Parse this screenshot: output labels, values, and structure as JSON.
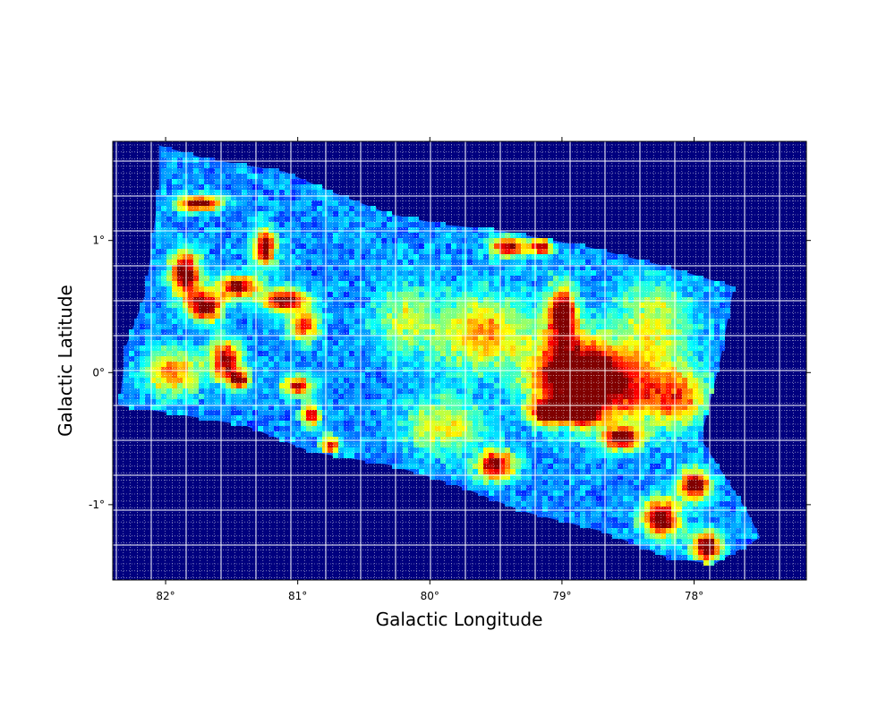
{
  "chart_data": {
    "type": "heatmap",
    "xlabel": "Galactic Longitude",
    "ylabel": "Galactic Latitude",
    "x_reversed": true,
    "xlim": [
      82.4,
      77.15
    ],
    "ylim": [
      -1.57,
      1.75
    ],
    "x_ticks": [
      82,
      81,
      80,
      79,
      78
    ],
    "x_tick_labels": [
      "82°",
      "81°",
      "80°",
      "79°",
      "78°"
    ],
    "y_ticks": [
      1,
      0,
      -1
    ],
    "y_tick_labels": [
      "1°",
      "0°",
      "-1°"
    ],
    "grid": true,
    "colormap": "jet",
    "background_color": "#00007f",
    "coverage_outline": [
      [
        82.05,
        1.72
      ],
      [
        81.7,
        1.62
      ],
      [
        81.1,
        1.52
      ],
      [
        80.7,
        1.35
      ],
      [
        80.3,
        1.2
      ],
      [
        79.9,
        1.12
      ],
      [
        79.5,
        1.08
      ],
      [
        78.8,
        0.95
      ],
      [
        78.2,
        0.8
      ],
      [
        77.7,
        0.65
      ],
      [
        77.8,
        0.1
      ],
      [
        77.95,
        -0.5
      ],
      [
        77.6,
        -1.05
      ],
      [
        77.5,
        -1.25
      ],
      [
        77.85,
        -1.45
      ],
      [
        78.2,
        -1.4
      ],
      [
        78.7,
        -1.2
      ],
      [
        79.3,
        -1.05
      ],
      [
        79.8,
        -0.85
      ],
      [
        80.3,
        -0.7
      ],
      [
        80.9,
        -0.6
      ],
      [
        81.4,
        -0.4
      ],
      [
        82.0,
        -0.3
      ],
      [
        82.35,
        -0.25
      ],
      [
        82.3,
        0.2
      ],
      [
        82.15,
        0.6
      ],
      [
        82.1,
        1.0
      ],
      [
        82.05,
        1.4
      ]
    ],
    "emission_clumps": [
      {
        "l": 81.75,
        "b": 1.28,
        "sl": 0.12,
        "sb": 0.04,
        "peak": 1.0
      },
      {
        "l": 81.85,
        "b": 0.75,
        "sl": 0.08,
        "sb": 0.12,
        "peak": 1.0
      },
      {
        "l": 81.7,
        "b": 0.5,
        "sl": 0.09,
        "sb": 0.08,
        "peak": 1.0
      },
      {
        "l": 81.45,
        "b": 0.65,
        "sl": 0.1,
        "sb": 0.06,
        "peak": 0.95
      },
      {
        "l": 81.25,
        "b": 0.95,
        "sl": 0.06,
        "sb": 0.1,
        "peak": 0.95
      },
      {
        "l": 81.1,
        "b": 0.55,
        "sl": 0.12,
        "sb": 0.06,
        "peak": 0.95
      },
      {
        "l": 81.55,
        "b": 0.1,
        "sl": 0.08,
        "sb": 0.1,
        "peak": 0.9
      },
      {
        "l": 81.45,
        "b": -0.05,
        "sl": 0.06,
        "sb": 0.05,
        "peak": 0.9
      },
      {
        "l": 80.95,
        "b": 0.35,
        "sl": 0.08,
        "sb": 0.08,
        "peak": 0.7
      },
      {
        "l": 81.0,
        "b": -0.1,
        "sl": 0.08,
        "sb": 0.05,
        "peak": 0.85
      },
      {
        "l": 80.9,
        "b": -0.32,
        "sl": 0.05,
        "sb": 0.06,
        "peak": 0.85
      },
      {
        "l": 81.95,
        "b": 0.0,
        "sl": 0.15,
        "sb": 0.12,
        "peak": 0.6
      },
      {
        "l": 80.75,
        "b": -0.55,
        "sl": 0.05,
        "sb": 0.05,
        "peak": 0.75
      },
      {
        "l": 79.4,
        "b": 0.95,
        "sl": 0.1,
        "sb": 0.05,
        "peak": 0.9
      },
      {
        "l": 79.15,
        "b": 0.95,
        "sl": 0.06,
        "sb": 0.04,
        "peak": 0.85
      },
      {
        "l": 79.0,
        "b": 0.45,
        "sl": 0.08,
        "sb": 0.15,
        "peak": 0.9
      },
      {
        "l": 78.95,
        "b": 0.0,
        "sl": 0.2,
        "sb": 0.2,
        "peak": 0.85
      },
      {
        "l": 78.6,
        "b": -0.1,
        "sl": 0.3,
        "sb": 0.2,
        "peak": 0.8
      },
      {
        "l": 79.1,
        "b": -0.3,
        "sl": 0.1,
        "sb": 0.06,
        "peak": 1.0
      },
      {
        "l": 78.85,
        "b": -0.3,
        "sl": 0.08,
        "sb": 0.06,
        "peak": 0.95
      },
      {
        "l": 79.5,
        "b": -0.7,
        "sl": 0.1,
        "sb": 0.08,
        "peak": 0.9
      },
      {
        "l": 78.55,
        "b": -0.5,
        "sl": 0.1,
        "sb": 0.06,
        "peak": 0.9
      },
      {
        "l": 78.0,
        "b": -0.85,
        "sl": 0.08,
        "sb": 0.08,
        "peak": 1.0
      },
      {
        "l": 78.25,
        "b": -1.1,
        "sl": 0.1,
        "sb": 0.1,
        "peak": 1.0
      },
      {
        "l": 77.9,
        "b": -1.32,
        "sl": 0.08,
        "sb": 0.08,
        "peak": 1.0
      },
      {
        "l": 79.6,
        "b": 0.3,
        "sl": 0.25,
        "sb": 0.2,
        "peak": 0.55
      },
      {
        "l": 79.9,
        "b": -0.4,
        "sl": 0.2,
        "sb": 0.15,
        "peak": 0.45
      },
      {
        "l": 80.2,
        "b": 0.4,
        "sl": 0.15,
        "sb": 0.2,
        "peak": 0.35
      },
      {
        "l": 78.3,
        "b": 0.4,
        "sl": 0.2,
        "sb": 0.2,
        "peak": 0.4
      },
      {
        "l": 78.1,
        "b": -0.2,
        "sl": 0.15,
        "sb": 0.15,
        "peak": 0.5
      }
    ]
  }
}
